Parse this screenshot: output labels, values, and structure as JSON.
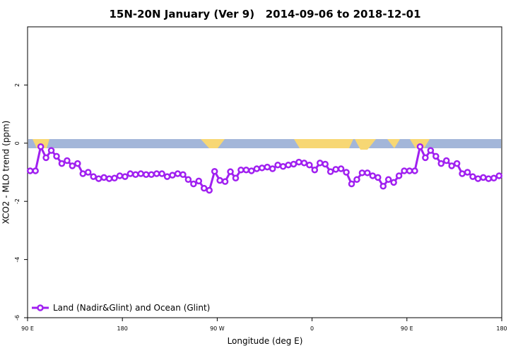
{
  "chart_data": {
    "type": "line",
    "title": "15N-20N January (Ver 9)   2014-09-06 to 2018-12-01",
    "xlabel": "Longitude (deg E)",
    "ylabel": "XCO2 - MLO trend (ppm)",
    "x": [
      92.5,
      97.5,
      102.5,
      107.5,
      112.5,
      117.5,
      122.5,
      127.5,
      132.5,
      137.5,
      142.5,
      147.5,
      152.5,
      157.5,
      162.5,
      167.5,
      172.5,
      177.5,
      182.5,
      187.5,
      192.5,
      197.5,
      202.5,
      207.5,
      212.5,
      217.5,
      222.5,
      227.5,
      232.5,
      237.5,
      242.5,
      247.5,
      252.5,
      257.5,
      262.5,
      267.5,
      272.5,
      277.5,
      282.5,
      287.5,
      292.5,
      297.5,
      302.5,
      307.5,
      312.5,
      317.5,
      322.5,
      327.5,
      332.5,
      337.5,
      342.5,
      347.5,
      352.5,
      357.5,
      362.5,
      367.5,
      372.5,
      377.5,
      382.5,
      387.5,
      392.5,
      397.5,
      402.5,
      407.5,
      412.5,
      417.5,
      422.5,
      427.5,
      432.5,
      437.5,
      442.5,
      447.5,
      452.5,
      457.5,
      462.5,
      467.5,
      472.5,
      477.5,
      482.5,
      487.5,
      492.5,
      497.5,
      502.5,
      507.5,
      512.5,
      517.5,
      522.5,
      527.5,
      532.5,
      537.5
    ],
    "series": [
      {
        "name": "Land (Nadir&Glint) and Ocean (Glint)",
        "color": "#a020f0",
        "values": [
          -0.95,
          -0.95,
          -0.12,
          -0.5,
          -0.25,
          -0.45,
          -0.7,
          -0.6,
          -0.78,
          -0.7,
          -1.05,
          -1.0,
          -1.15,
          -1.22,
          -1.18,
          -1.22,
          -1.2,
          -1.12,
          -1.15,
          -1.05,
          -1.08,
          -1.05,
          -1.08,
          -1.08,
          -1.05,
          -1.05,
          -1.15,
          -1.1,
          -1.05,
          -1.08,
          -1.25,
          -1.4,
          -1.3,
          -1.55,
          -1.62,
          -0.97,
          -1.28,
          -1.32,
          -0.98,
          -1.2,
          -0.92,
          -0.92,
          -0.95,
          -0.88,
          -0.85,
          -0.82,
          -0.88,
          -0.75,
          -0.8,
          -0.75,
          -0.72,
          -0.65,
          -0.68,
          -0.75,
          -0.92,
          -0.68,
          -0.72,
          -0.98,
          -0.9,
          -0.88,
          -1.0,
          -1.4,
          -1.25,
          -1.02,
          -1.02,
          -1.12,
          -1.18,
          -1.48,
          -1.25,
          -1.35,
          -1.12,
          -0.95,
          -0.95,
          -0.95,
          -0.12,
          -0.5,
          -0.25,
          -0.45,
          -0.7,
          -0.6,
          -0.78,
          -0.7,
          -1.05,
          -1.0,
          -1.15,
          -1.22,
          -1.18,
          -1.22,
          -1.2,
          -1.12
        ]
      }
    ],
    "xlim": [
      90,
      540
    ],
    "xticks": [
      {
        "value": 90,
        "label": "90 E"
      },
      180,
      {
        "value": 270,
        "label": "90 W"
      },
      {
        "value": 360,
        "label": "0"
      },
      {
        "value": 450,
        "label": "90 E"
      },
      {
        "value": 540,
        "label": "180"
      }
    ],
    "ylim": [
      -6,
      4
    ],
    "yticks": [
      -6,
      -4,
      -2,
      0,
      2
    ],
    "legend": "bottom-left"
  }
}
